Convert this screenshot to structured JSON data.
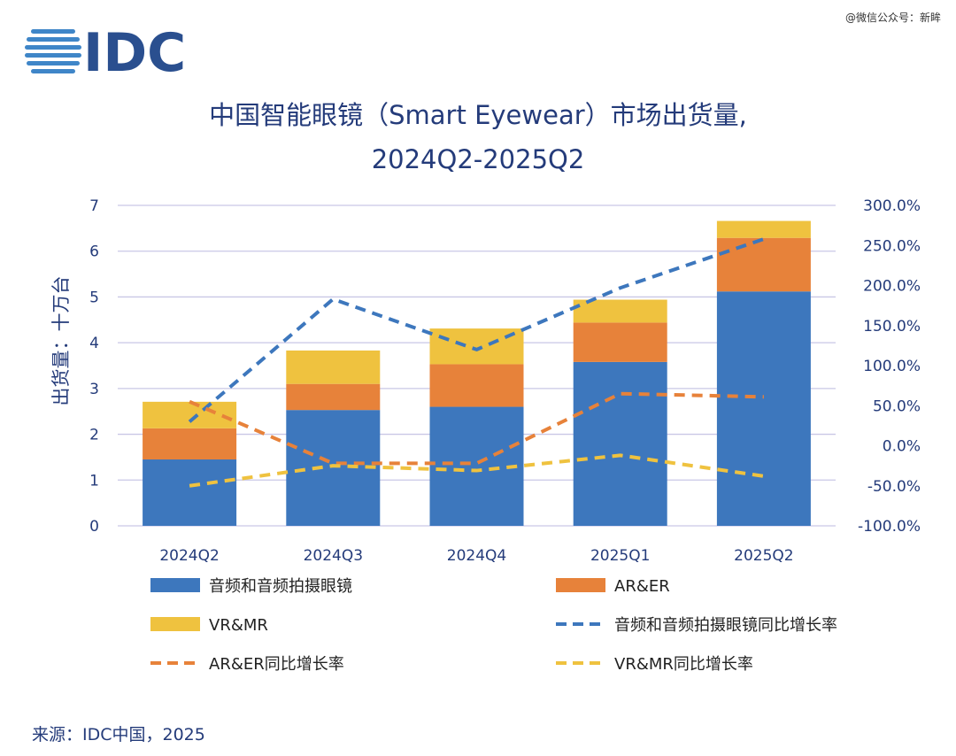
{
  "watermark": "@微信公众号：新眸",
  "logo": {
    "text": "IDC"
  },
  "title": {
    "line1": "中国智能眼镜（Smart Eyewear）市场出货量,",
    "line2": "2024Q2-2025Q2"
  },
  "source": "来源：IDC中国，2025",
  "colors": {
    "audio": "#3d77bd",
    "ar": "#e7823a",
    "vr": "#efc23f",
    "title": "#243b7a",
    "grid": "#c9c7e6",
    "logo": "#2a4f8f",
    "logo_stripes": "#3f86c8"
  },
  "chart_data": {
    "type": "bar",
    "stacked": true,
    "categories": [
      "2024Q2",
      "2024Q3",
      "2024Q4",
      "2025Q1",
      "2025Q2"
    ],
    "ylabel": "出货量：十万台",
    "ylim": [
      0,
      7
    ],
    "yticks": [
      "0",
      "1",
      "2",
      "3",
      "4",
      "5",
      "6",
      "7"
    ],
    "y2lim": [
      -100,
      300
    ],
    "y2ticks": [
      "-100.0%",
      "-50.0%",
      "0.0%",
      "50.0%",
      "100.0%",
      "150.0%",
      "200.0%",
      "250.0%",
      "300.0%"
    ],
    "grid": true,
    "legend_position": "bottom",
    "series": [
      {
        "name": "音频和音频拍摄眼镜",
        "kind": "bar",
        "color": "#3d77bd",
        "values": [
          1.45,
          2.53,
          2.6,
          3.58,
          5.12
        ]
      },
      {
        "name": "AR&ER",
        "kind": "bar",
        "color": "#e7823a",
        "values": [
          0.68,
          0.57,
          0.93,
          0.86,
          1.17
        ]
      },
      {
        "name": "VR&MR",
        "kind": "bar",
        "color": "#efc23f",
        "values": [
          0.58,
          0.73,
          0.78,
          0.5,
          0.37
        ]
      },
      {
        "name": "音频和音频拍摄眼镜同比增长率",
        "kind": "line",
        "axis": "right",
        "color": "#3d77bd",
        "values": [
          30,
          183,
          120,
          197,
          258
        ]
      },
      {
        "name": "AR&ER同比增长率",
        "kind": "line",
        "axis": "right",
        "color": "#e7823a",
        "values": [
          55,
          -22,
          -22,
          65,
          61
        ]
      },
      {
        "name": "VR&MR同比增长率",
        "kind": "line",
        "axis": "right",
        "color": "#efc23f",
        "values": [
          -50,
          -25,
          -31,
          -12,
          -38
        ]
      }
    ]
  }
}
